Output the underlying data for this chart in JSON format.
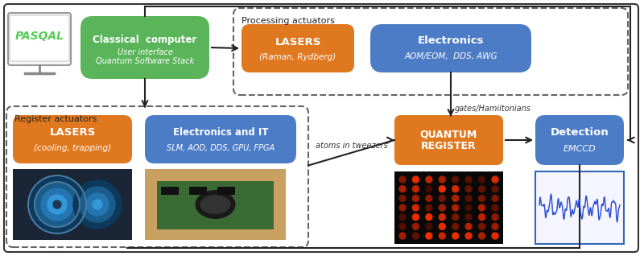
{
  "background_color": "#ffffff",
  "fig_width": 8.0,
  "fig_height": 3.18,
  "pasqal_label": "PASQAL",
  "pasqal_text_color": "#55cc55",
  "classical_label": "Classical  computer",
  "classical_sub": "User interface\nQuantum Software Stack",
  "classical_color": "#5ab55a",
  "classical_text": "#ffffff",
  "processing_label": "Processing actuators",
  "register_label": "Register actuators",
  "lasers_proc_label": "LASERS",
  "lasers_proc_sub": "(Raman, Rydberg)",
  "lasers_proc_color": "#e07820",
  "electronics_label": "Electronics",
  "electronics_sub": "AOM/EOM,  DDS, AWG",
  "electronics_color": "#4d7cc7",
  "lasers_reg_label": "LASERS",
  "lasers_reg_sub": "(cooling, trapping)",
  "lasers_reg_color": "#e07820",
  "elec_it_label": "Electronics and IT",
  "elec_it_sub": "SLM, AOD, DDS, GPU, FPGA",
  "elec_it_color": "#4d7cc7",
  "qreg_label": "QUANTUM\nREGISTER",
  "qreg_color": "#e07820",
  "detection_label": "Detection",
  "detection_sub": "EMCCD",
  "detection_color": "#4d7cc7",
  "arrow_color": "#222222",
  "atoms_label": "atoms in tweezers",
  "gates_label": "gates/Hamiltonians"
}
